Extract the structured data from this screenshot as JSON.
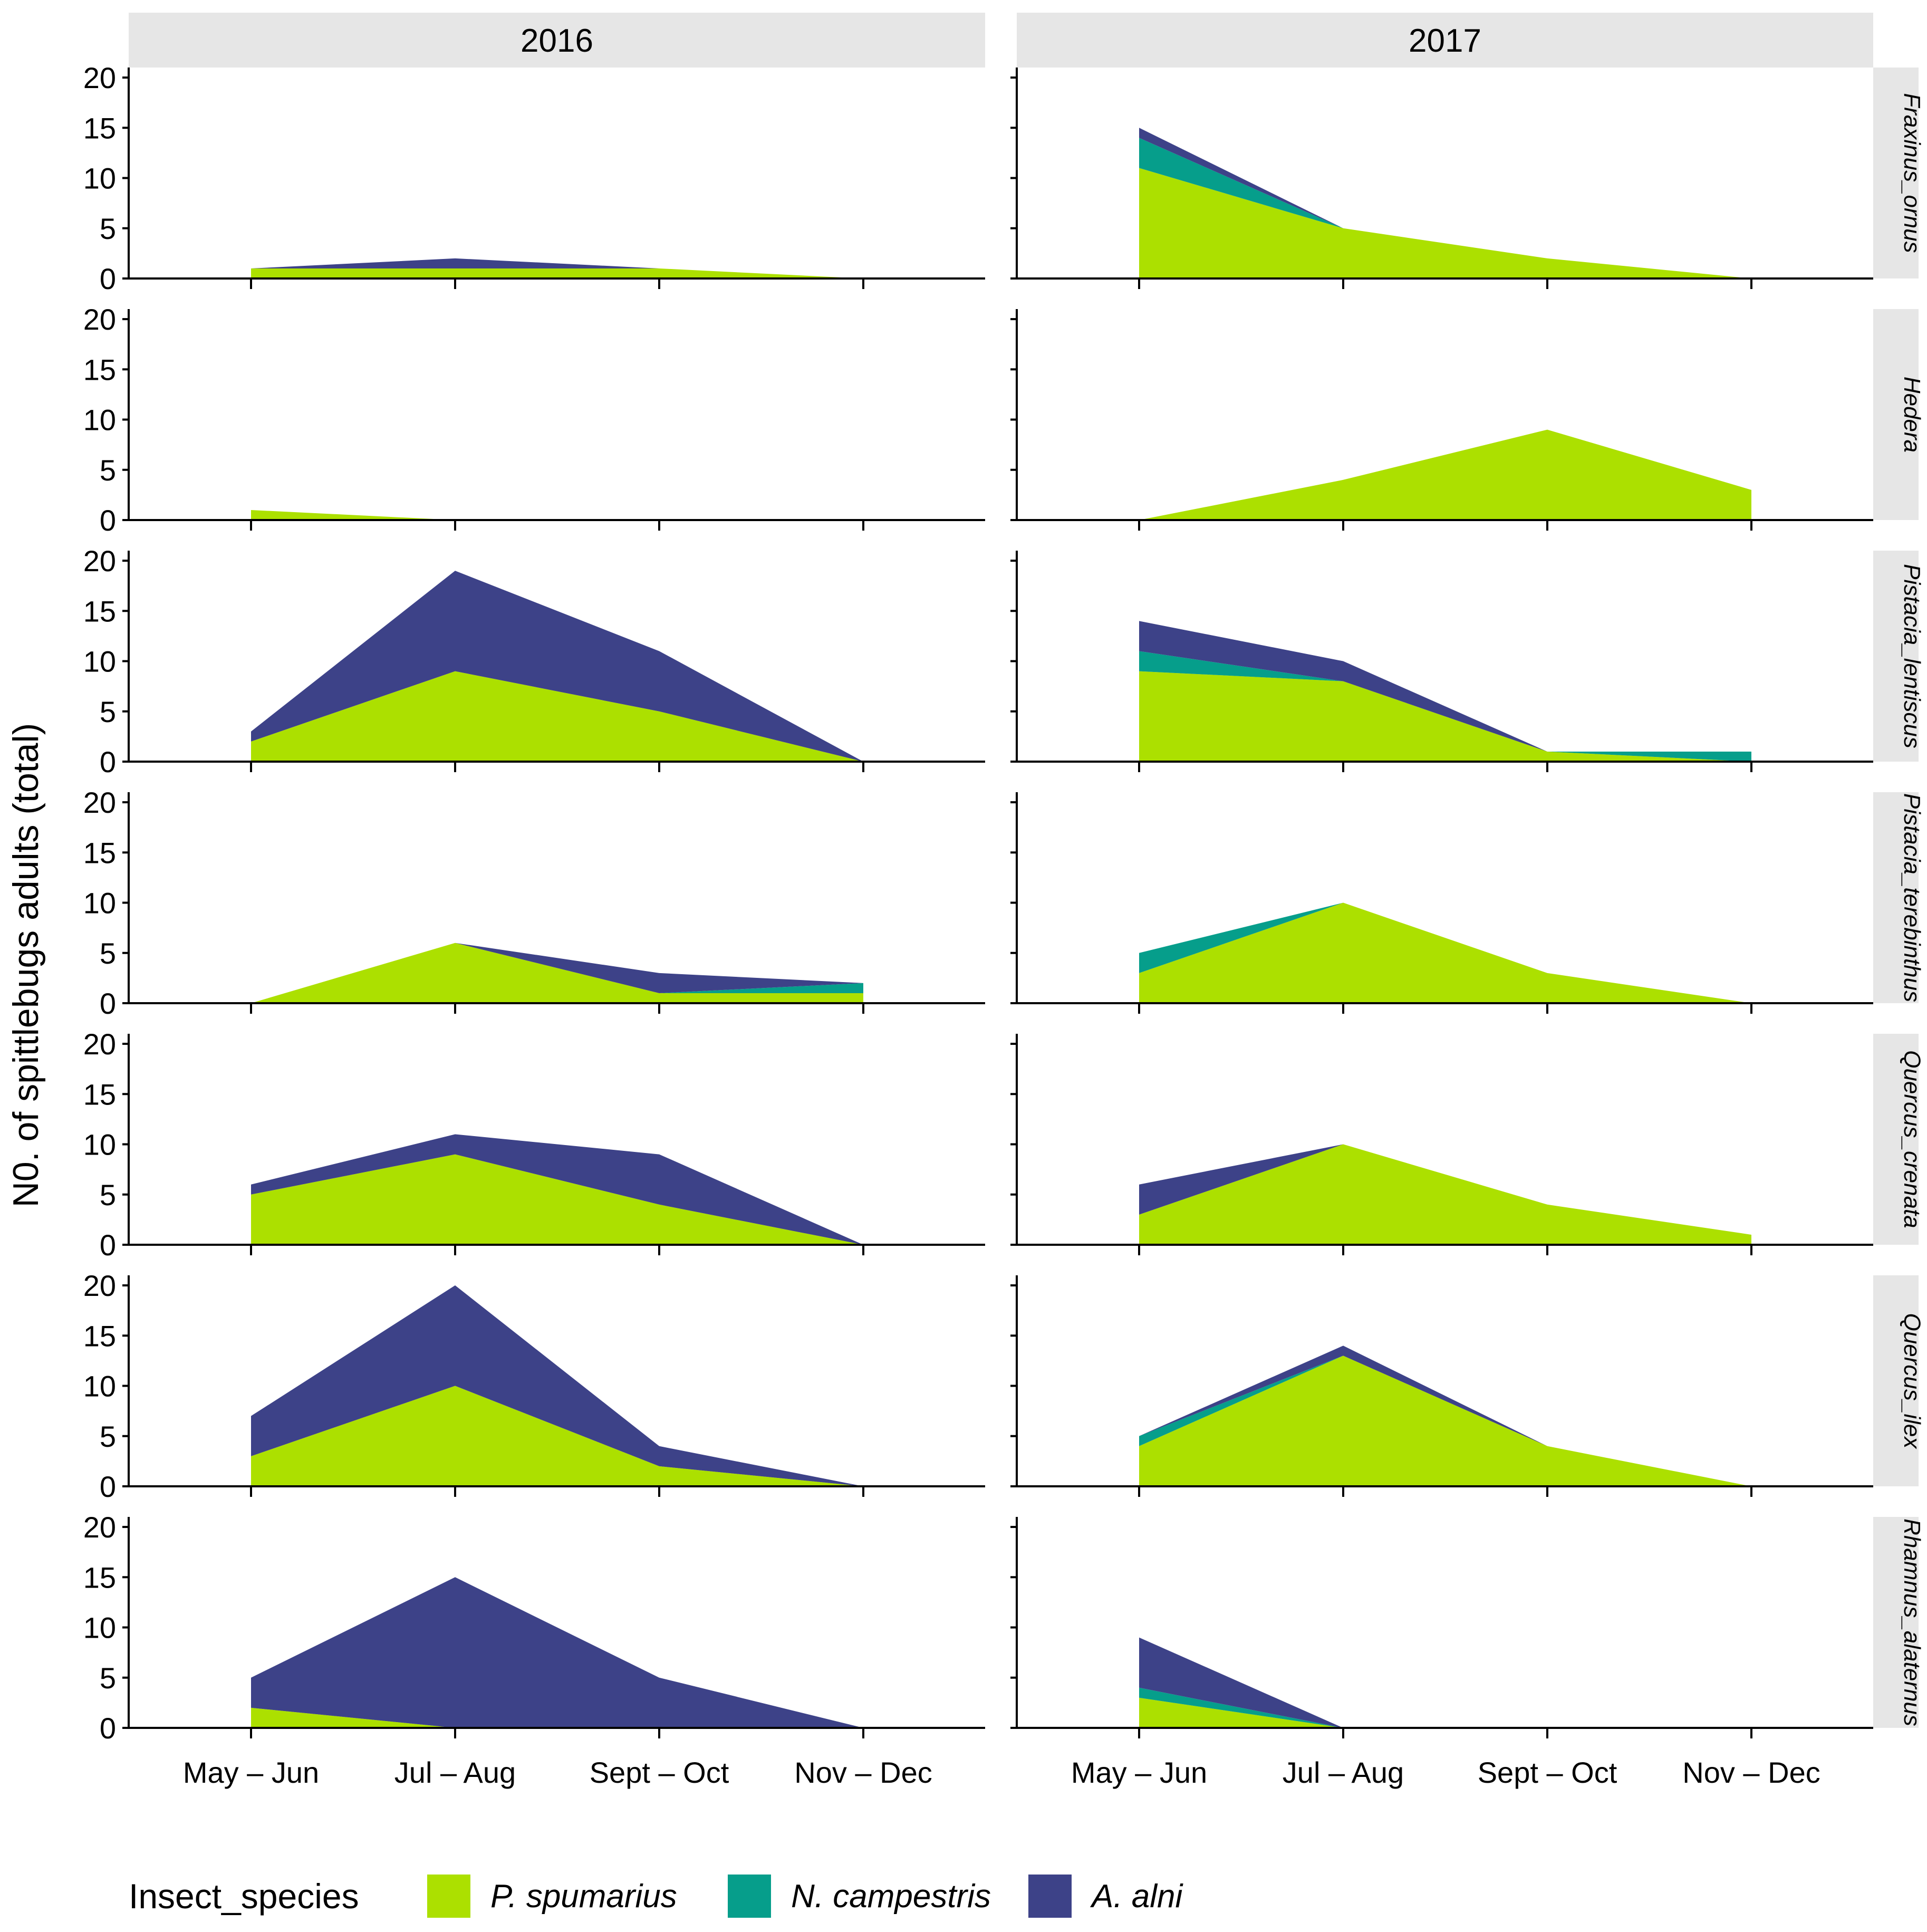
{
  "chart_data": {
    "type": "area",
    "stacked": true,
    "ylabel": "N0. of spittlebugs adults (total)",
    "xlabel": "",
    "ylim": [
      0,
      21
    ],
    "y_ticks": [
      0,
      5,
      10,
      15,
      20
    ],
    "categories": [
      "May – Jun",
      "Jul – Aug",
      "Sept – Oct",
      "Nov – Dec"
    ],
    "years": [
      "2016",
      "2017"
    ],
    "legend": {
      "title": "Insect_species",
      "position": "bottom",
      "entries": [
        {
          "name": "P. spumarius",
          "color": "#ACE000"
        },
        {
          "name": "N. campestris",
          "color": "#069E8B"
        },
        {
          "name": "A. alni",
          "color": "#3D4288"
        }
      ]
    },
    "stack_order_bottom_to_top": [
      "P. spumarius",
      "N. campestris",
      "A. alni"
    ],
    "panels": [
      {
        "plant": "Fraxinus_ornus",
        "year": "2016",
        "x_start": 0,
        "series": {
          "P. spumarius": [
            1,
            1,
            1,
            0
          ],
          "N. campestris": [
            0,
            0,
            0,
            0
          ],
          "A. alni": [
            0,
            1,
            0,
            0
          ]
        }
      },
      {
        "plant": "Fraxinus_ornus",
        "year": "2017",
        "x_start": 0,
        "series": {
          "P. spumarius": [
            11,
            5,
            2,
            0
          ],
          "N. campestris": [
            3,
            0,
            0,
            0
          ],
          "A. alni": [
            1,
            0,
            0,
            0
          ]
        }
      },
      {
        "plant": "Hedera",
        "year": "2016",
        "x_start": 0,
        "series": {
          "P. spumarius": [
            1,
            0
          ],
          "N. campestris": [
            0,
            0
          ],
          "A. alni": [
            0,
            0
          ]
        }
      },
      {
        "plant": "Hedera",
        "year": "2017",
        "x_start": 0,
        "series": {
          "P. spumarius": [
            0,
            4,
            9,
            3
          ],
          "N. campestris": [
            0,
            0,
            0,
            0
          ],
          "A. alni": [
            0,
            0,
            0,
            0
          ]
        }
      },
      {
        "plant": "Pistacia_lentiscus",
        "year": "2016",
        "x_start": 0,
        "series": {
          "P. spumarius": [
            2,
            9,
            5,
            0
          ],
          "N. campestris": [
            0,
            0,
            0,
            0
          ],
          "A. alni": [
            1,
            10,
            6,
            0
          ]
        }
      },
      {
        "plant": "Pistacia_lentiscus",
        "year": "2017",
        "x_start": 0,
        "series": {
          "P. spumarius": [
            9,
            8,
            1,
            0
          ],
          "N. campestris": [
            2,
            0,
            0,
            1
          ],
          "A. alni": [
            3,
            2,
            0,
            0
          ]
        }
      },
      {
        "plant": "Pistacia_terebinthus",
        "year": "2016",
        "x_start": 0,
        "series": {
          "P. spumarius": [
            0,
            6,
            1,
            1
          ],
          "N. campestris": [
            0,
            0,
            0,
            1
          ],
          "A. alni": [
            0,
            0,
            2,
            0
          ]
        }
      },
      {
        "plant": "Pistacia_terebinthus",
        "year": "2017",
        "x_start": 0,
        "series": {
          "P. spumarius": [
            3,
            10,
            3,
            0
          ],
          "N. campestris": [
            2,
            0,
            0,
            0
          ],
          "A. alni": [
            0,
            0,
            0,
            0
          ]
        }
      },
      {
        "plant": "Quercus_crenata",
        "year": "2016",
        "x_start": 0,
        "series": {
          "P. spumarius": [
            5,
            9,
            4,
            0
          ],
          "N. campestris": [
            0,
            0,
            0,
            0
          ],
          "A. alni": [
            1,
            2,
            5,
            0
          ]
        }
      },
      {
        "plant": "Quercus_crenata",
        "year": "2017",
        "x_start": 0,
        "series": {
          "P. spumarius": [
            3,
            10,
            4,
            1
          ],
          "N. campestris": [
            0,
            0,
            0,
            0
          ],
          "A. alni": [
            3,
            0,
            0,
            0
          ]
        }
      },
      {
        "plant": "Quercus_ilex",
        "year": "2016",
        "x_start": 0,
        "series": {
          "P. spumarius": [
            3,
            10,
            2,
            0
          ],
          "N. campestris": [
            0,
            0,
            0,
            0
          ],
          "A. alni": [
            4,
            10,
            2,
            0
          ]
        }
      },
      {
        "plant": "Quercus_ilex",
        "year": "2017",
        "x_start": 0,
        "series": {
          "P. spumarius": [
            4,
            13,
            4,
            0
          ],
          "N. campestris": [
            1,
            0,
            0,
            0
          ],
          "A. alni": [
            0,
            1,
            0,
            0
          ]
        }
      },
      {
        "plant": "Rhamnus_alaternus",
        "year": "2016",
        "x_start": 0,
        "series": {
          "P. spumarius": [
            2,
            0,
            0,
            0
          ],
          "N. campestris": [
            0,
            0,
            0,
            0
          ],
          "A. alni": [
            3,
            15,
            5,
            0
          ]
        }
      },
      {
        "plant": "Rhamnus_alaternus",
        "year": "2017",
        "x_start": 0,
        "series": {
          "P. spumarius": [
            3,
            0
          ],
          "N. campestris": [
            1,
            0
          ],
          "A. alni": [
            5,
            0
          ]
        }
      }
    ]
  }
}
